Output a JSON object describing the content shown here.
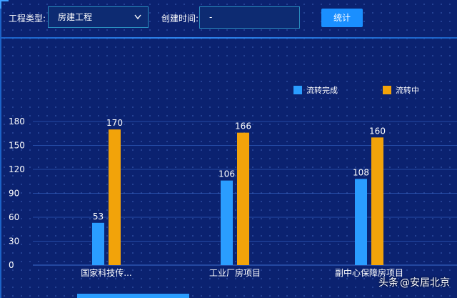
{
  "filters": {
    "project_type_label": "工程类型:",
    "project_type_value": "房建工程",
    "created_time_label": "创建时间:",
    "created_time_value": "-",
    "stats_button": "统计"
  },
  "legend": [
    {
      "label": "流转完成",
      "color": "#2a9dff"
    },
    {
      "label": "流转中",
      "color": "#f2a30a"
    }
  ],
  "chart_data": {
    "type": "bar",
    "categories": [
      "国家科技传...",
      "工业厂房项目",
      "副中心保障房项目"
    ],
    "series": [
      {
        "name": "流转完成",
        "values": [
          53,
          106,
          108
        ],
        "color": "#2a9dff"
      },
      {
        "name": "流转中",
        "values": [
          170,
          166,
          160
        ],
        "color": "#f2a30a"
      }
    ],
    "yticks": [
      0,
      30,
      60,
      90,
      120,
      150,
      180
    ],
    "ylim": [
      0,
      180
    ],
    "grid": true,
    "legend_position": "top-right"
  },
  "watermark": {
    "badge": "头条",
    "text": "@安居北京"
  }
}
